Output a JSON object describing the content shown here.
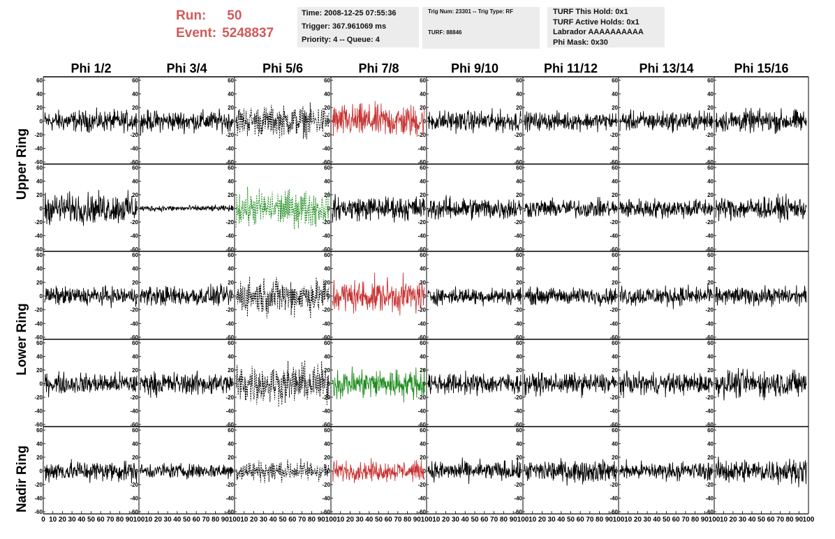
{
  "header": {
    "run_label": "Run:",
    "run_value": "50",
    "event_label": "Event:",
    "event_value": "5248837",
    "time": "Time: 2008-12-25 07:55:36",
    "trigger": "Trigger: 367.961069 ms",
    "priority": "Priority: 4 -- Queue: 4",
    "trig_num": "Trig Num: 23301 -- Trig Type: RF",
    "turf": "TURF: 88846",
    "turf_this_hold": "TURF This Hold: 0x1",
    "turf_active_holds": "TURF Active Holds: 0x1",
    "labrador": "Labrador AAAAAAAAAA",
    "phi_mask": "Phi Mask: 0x30"
  },
  "columns": [
    "Phi 1/2",
    "Phi 3/4",
    "Phi 5/6",
    "Phi 7/8",
    "Phi 9/10",
    "Phi 11/12",
    "Phi 13/14",
    "Phi 15/16"
  ],
  "ring_labels": [
    "Upper Ring",
    "Lower Ring",
    "Nadir Ring"
  ],
  "axes": {
    "y_ticks": [
      "60",
      "40",
      "20",
      "0",
      "-20",
      "-40",
      "-60"
    ],
    "x_ticks": [
      "0",
      "10",
      "20",
      "30",
      "40",
      "50",
      "60",
      "70",
      "80",
      "90",
      "100"
    ],
    "ylim": [
      -60,
      60
    ],
    "xlim": [
      0,
      100
    ]
  },
  "colors": {
    "run_text": "#d05a5a",
    "trace_default": "#000000",
    "trace_red": "#c83232",
    "trace_green": "#1e8c1e",
    "info_bg": "#ececec"
  },
  "chart_data": {
    "type": "line",
    "samples_per_trace": 260,
    "panels": [
      {
        "row": 0,
        "col": 0,
        "amp": 14,
        "color": "black",
        "style": "solid"
      },
      {
        "row": 0,
        "col": 1,
        "amp": 14,
        "color": "black",
        "style": "solid"
      },
      {
        "row": 0,
        "col": 2,
        "amp": 20,
        "color": "black",
        "style": "dashed"
      },
      {
        "row": 0,
        "col": 3,
        "amp": 22,
        "color": "red",
        "style": "solid"
      },
      {
        "row": 0,
        "col": 4,
        "amp": 14,
        "color": "black",
        "style": "solid"
      },
      {
        "row": 0,
        "col": 5,
        "amp": 12,
        "color": "black",
        "style": "solid"
      },
      {
        "row": 0,
        "col": 6,
        "amp": 13,
        "color": "black",
        "style": "solid"
      },
      {
        "row": 0,
        "col": 7,
        "amp": 15,
        "color": "black",
        "style": "solid"
      },
      {
        "row": 1,
        "col": 0,
        "amp": 20,
        "color": "black",
        "style": "solid"
      },
      {
        "row": 1,
        "col": 1,
        "amp": 4,
        "color": "black",
        "style": "solid"
      },
      {
        "row": 1,
        "col": 2,
        "amp": 24,
        "color": "green",
        "style": "dashed"
      },
      {
        "row": 1,
        "col": 3,
        "amp": 16,
        "color": "black",
        "style": "solid"
      },
      {
        "row": 1,
        "col": 4,
        "amp": 15,
        "color": "black",
        "style": "solid"
      },
      {
        "row": 1,
        "col": 5,
        "amp": 12,
        "color": "black",
        "style": "solid"
      },
      {
        "row": 1,
        "col": 6,
        "amp": 13,
        "color": "black",
        "style": "solid"
      },
      {
        "row": 1,
        "col": 7,
        "amp": 15,
        "color": "black",
        "style": "solid"
      },
      {
        "row": 2,
        "col": 0,
        "amp": 12,
        "color": "black",
        "style": "solid"
      },
      {
        "row": 2,
        "col": 1,
        "amp": 13,
        "color": "black",
        "style": "solid"
      },
      {
        "row": 2,
        "col": 2,
        "amp": 24,
        "color": "black",
        "style": "dashed"
      },
      {
        "row": 2,
        "col": 3,
        "amp": 22,
        "color": "red",
        "style": "solid"
      },
      {
        "row": 2,
        "col": 4,
        "amp": 11,
        "color": "black",
        "style": "solid"
      },
      {
        "row": 2,
        "col": 5,
        "amp": 11,
        "color": "black",
        "style": "solid"
      },
      {
        "row": 2,
        "col": 6,
        "amp": 13,
        "color": "black",
        "style": "solid"
      },
      {
        "row": 2,
        "col": 7,
        "amp": 12,
        "color": "black",
        "style": "solid"
      },
      {
        "row": 3,
        "col": 0,
        "amp": 14,
        "color": "black",
        "style": "solid"
      },
      {
        "row": 3,
        "col": 1,
        "amp": 15,
        "color": "black",
        "style": "solid"
      },
      {
        "row": 3,
        "col": 2,
        "amp": 26,
        "color": "black",
        "style": "dashed"
      },
      {
        "row": 3,
        "col": 3,
        "amp": 20,
        "color": "green",
        "style": "solid"
      },
      {
        "row": 3,
        "col": 4,
        "amp": 14,
        "color": "black",
        "style": "solid"
      },
      {
        "row": 3,
        "col": 5,
        "amp": 14,
        "color": "black",
        "style": "solid"
      },
      {
        "row": 3,
        "col": 6,
        "amp": 14,
        "color": "black",
        "style": "solid"
      },
      {
        "row": 3,
        "col": 7,
        "amp": 18,
        "color": "black",
        "style": "solid"
      },
      {
        "row": 4,
        "col": 0,
        "amp": 14,
        "color": "black",
        "style": "solid"
      },
      {
        "row": 4,
        "col": 1,
        "amp": 10,
        "color": "black",
        "style": "solid"
      },
      {
        "row": 4,
        "col": 2,
        "amp": 14,
        "color": "black",
        "style": "dashed"
      },
      {
        "row": 4,
        "col": 3,
        "amp": 13,
        "color": "red",
        "style": "solid"
      },
      {
        "row": 4,
        "col": 4,
        "amp": 13,
        "color": "black",
        "style": "solid"
      },
      {
        "row": 4,
        "col": 5,
        "amp": 15,
        "color": "black",
        "style": "solid"
      },
      {
        "row": 4,
        "col": 6,
        "amp": 12,
        "color": "black",
        "style": "solid"
      },
      {
        "row": 4,
        "col": 7,
        "amp": 16,
        "color": "black",
        "style": "solid"
      }
    ]
  }
}
